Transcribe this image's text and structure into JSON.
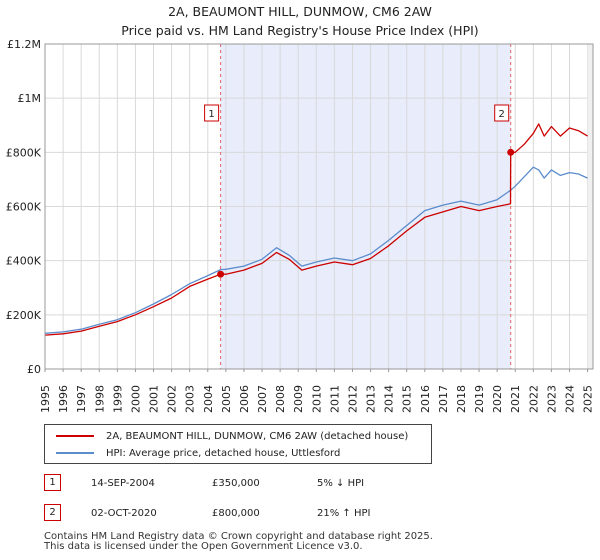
{
  "title": {
    "line1": "2A, BEAUMONT HILL, DUNMOW, CM6 2AW",
    "line2": "Price paid vs. HM Land Registry's House Price Index (HPI)"
  },
  "chart_data": {
    "type": "line",
    "title": "2A, BEAUMONT HILL, DUNMOW, CM6 2AW — Price paid vs. HM Land Registry's House Price Index (HPI)",
    "xlabel": "",
    "ylabel": "",
    "xlim": [
      1995,
      2025.3
    ],
    "ylim": [
      0,
      1200000
    ],
    "x_ticks": [
      1995,
      1996,
      1997,
      1998,
      1999,
      2000,
      2001,
      2002,
      2003,
      2004,
      2005,
      2006,
      2007,
      2008,
      2009,
      2010,
      2011,
      2012,
      2013,
      2014,
      2015,
      2016,
      2017,
      2018,
      2019,
      2020,
      2021,
      2022,
      2023,
      2024,
      2025
    ],
    "x_tick_labels": [
      "1995",
      "1996",
      "1997",
      "1998",
      "1999",
      "2000",
      "2001",
      "2002",
      "2003",
      "2004",
      "2005",
      "2006",
      "2007",
      "2008",
      "2009",
      "2010",
      "2011",
      "2012",
      "2013",
      "2014",
      "2015",
      "2016",
      "2017",
      "2018",
      "2019",
      "2020",
      "2021",
      "2022",
      "2023",
      "2024",
      "2025"
    ],
    "y_ticks": [
      0,
      200000,
      400000,
      600000,
      800000,
      1000000,
      1200000
    ],
    "y_tick_labels": [
      "£0",
      "£200K",
      "£400K",
      "£600K",
      "£800K",
      "£1M",
      "£1.2M"
    ],
    "shaded_region": {
      "x0": 2004.71,
      "x1": 2020.75,
      "color": "#e8ecfb"
    },
    "series": [
      {
        "name": "2A, BEAUMONT HILL, DUNMOW, CM6 2AW (detached house)",
        "color": "#cc0000",
        "x": [
          1995,
          1996,
          1997,
          1998,
          1999,
          2000,
          2001,
          2002,
          2003,
          2004,
          2004.71,
          2005,
          2006,
          2007,
          2007.8,
          2008.5,
          2009.2,
          2010,
          2011,
          2012,
          2013,
          2014,
          2015,
          2016,
          2017,
          2018,
          2019,
          2020,
          2020.74,
          2020.75,
          2021,
          2021.5,
          2022,
          2022.3,
          2022.6,
          2023,
          2023.5,
          2024,
          2024.5,
          2025
        ],
        "y": [
          125000,
          130000,
          140000,
          158000,
          175000,
          200000,
          230000,
          262000,
          305000,
          332000,
          350000,
          350000,
          365000,
          390000,
          430000,
          405000,
          365000,
          380000,
          395000,
          385000,
          408000,
          455000,
          510000,
          560000,
          580000,
          600000,
          585000,
          600000,
          610000,
          800000,
          800000,
          830000,
          870000,
          905000,
          860000,
          895000,
          860000,
          890000,
          880000,
          860000
        ]
      },
      {
        "name": "HPI: Average price, detached house, Uttlesford",
        "color": "#5b8ccc",
        "x": [
          1995,
          1996,
          1997,
          1998,
          1999,
          2000,
          2001,
          2002,
          2003,
          2004,
          2004.71,
          2005,
          2006,
          2007,
          2007.8,
          2008.5,
          2009.2,
          2010,
          2011,
          2012,
          2013,
          2014,
          2015,
          2016,
          2017,
          2018,
          2019,
          2020,
          2020.75,
          2021,
          2021.5,
          2022,
          2022.3,
          2022.6,
          2023,
          2023.5,
          2024,
          2024.5,
          2025
        ],
        "y": [
          132000,
          137000,
          147000,
          165000,
          182000,
          208000,
          240000,
          275000,
          315000,
          345000,
          367000,
          368000,
          380000,
          405000,
          448000,
          420000,
          380000,
          395000,
          410000,
          400000,
          425000,
          475000,
          530000,
          585000,
          605000,
          620000,
          605000,
          625000,
          660000,
          675000,
          710000,
          745000,
          735000,
          705000,
          735000,
          715000,
          725000,
          720000,
          705000
        ]
      }
    ],
    "annotations": [
      {
        "label": "1",
        "x": 2004.71,
        "y": 350000
      },
      {
        "label": "2",
        "x": 2020.75,
        "y": 800000
      }
    ]
  },
  "legend": {
    "items": [
      {
        "label": "2A, BEAUMONT HILL, DUNMOW, CM6 2AW (detached house)",
        "color": "#cc0000"
      },
      {
        "label": "HPI: Average price, detached house, Uttlesford",
        "color": "#5b8ccc"
      }
    ]
  },
  "transactions": [
    {
      "num": "1",
      "date": "14-SEP-2004",
      "price": "£350,000",
      "hpi": "5% ↓ HPI"
    },
    {
      "num": "2",
      "date": "02-OCT-2020",
      "price": "£800,000",
      "hpi": "21% ↑ HPI"
    }
  ],
  "footer": {
    "line1": "Contains HM Land Registry data © Crown copyright and database right 2025.",
    "line2": "This data is licensed under the Open Government Licence v3.0."
  }
}
